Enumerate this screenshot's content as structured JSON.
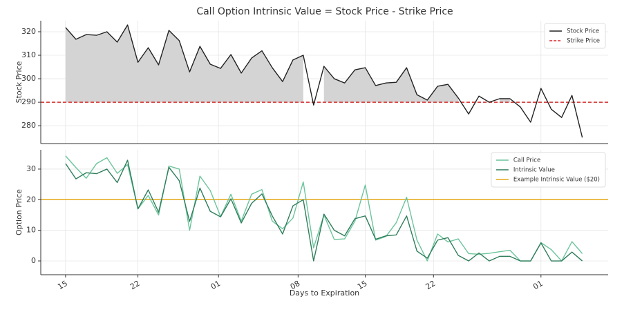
{
  "chart_data": [
    {
      "type": "line",
      "title": "Call Option Intrinsic Value = Stock Price - Strike Price",
      "ylabel": "Stock Price",
      "x": [
        0,
        1,
        2,
        3,
        4,
        5,
        6,
        7,
        8,
        9,
        10,
        11,
        12,
        13,
        14,
        15,
        16,
        17,
        18,
        19,
        20,
        21,
        22,
        23,
        24,
        25,
        26,
        27,
        28,
        29,
        30,
        31,
        32,
        33,
        34,
        35,
        36,
        37,
        38,
        39,
        40,
        41,
        42,
        43,
        44,
        45,
        46,
        47,
        48,
        49,
        50
      ],
      "series": [
        {
          "name": "Stock Price",
          "color": "#222222",
          "values": [
            321.8,
            316.8,
            318.8,
            318.5,
            320,
            315.6,
            322.9,
            307,
            313.2,
            305.9,
            320.6,
            316.2,
            302.9,
            313.8,
            306.2,
            304.4,
            310.3,
            302.4,
            308.8,
            311.9,
            304.7,
            298.8,
            308,
            310,
            288.8,
            305.3,
            300,
            298.2,
            303.8,
            304.7,
            297.1,
            298.2,
            298.5,
            304.7,
            293.2,
            290.9,
            296.8,
            297.6,
            291.8,
            285,
            292.6,
            290,
            291.5,
            291.5,
            288,
            281.5,
            295.9,
            287,
            283.5,
            292.9,
            275
          ]
        }
      ],
      "hlines": [
        {
          "name": "Strike Price",
          "value": 290,
          "color": "#d62728",
          "style": "dashed"
        }
      ],
      "fill": "#d4d4d4",
      "xlim": [
        -2.4,
        52.5
      ],
      "ylim": [
        272.4,
        324.7
      ],
      "yticks": [
        280,
        290,
        300,
        310,
        320
      ],
      "grid": true,
      "legend": "upper right"
    },
    {
      "type": "line",
      "ylabel": "Option Price",
      "xlabel": "Days to Expiration",
      "x": [
        0,
        1,
        2,
        3,
        4,
        5,
        6,
        7,
        8,
        9,
        10,
        11,
        12,
        13,
        14,
        15,
        16,
        17,
        18,
        19,
        20,
        21,
        22,
        23,
        24,
        25,
        26,
        27,
        28,
        29,
        30,
        31,
        32,
        33,
        34,
        35,
        36,
        37,
        38,
        39,
        40,
        41,
        42,
        43,
        44,
        45,
        46,
        47,
        48,
        49,
        50
      ],
      "series": [
        {
          "name": "Call Price",
          "color": "#6cc49c",
          "values": [
            34.3,
            30.5,
            27,
            31.8,
            33.7,
            28.6,
            31.5,
            17,
            21.4,
            15,
            31,
            30,
            10,
            27.7,
            23,
            14.5,
            21.8,
            13,
            21.8,
            23.3,
            13,
            10.5,
            14,
            25.8,
            4.3,
            15,
            7,
            7.2,
            13,
            24.8,
            6.8,
            8,
            12.5,
            20.8,
            6.8,
            0,
            8.8,
            6.2,
            7.2,
            2.4,
            2.2,
            2.5,
            3,
            3.5,
            0,
            0,
            6,
            3.7,
            0,
            6.3,
            2.4
          ]
        },
        {
          "name": "Intrinsic Value",
          "color": "#2e7d5b",
          "values": [
            31.8,
            26.8,
            28.8,
            28.5,
            30,
            25.6,
            32.9,
            17,
            23.2,
            15.9,
            30.6,
            26.2,
            12.9,
            23.8,
            16.2,
            14.4,
            20.3,
            12.4,
            18.8,
            21.9,
            14.7,
            8.8,
            18,
            20,
            0,
            15.3,
            10,
            8.2,
            13.8,
            14.7,
            7.1,
            8.2,
            8.5,
            14.7,
            3.2,
            0.9,
            6.8,
            7.6,
            1.8,
            0,
            2.6,
            0,
            1.5,
            1.5,
            0,
            0,
            5.9,
            0,
            0,
            2.9,
            0
          ]
        }
      ],
      "hlines": [
        {
          "name": "Example Intrinsic Value ($20)",
          "value": 20,
          "color": "#e6a817",
          "style": "solid"
        }
      ],
      "xlim": [
        -2.4,
        52.5
      ],
      "xticks": [
        {
          "value": 0,
          "label": "15"
        },
        {
          "value": 7,
          "label": "22"
        },
        {
          "value": 14.8,
          "label": "01"
        },
        {
          "value": 22.5,
          "label": "08"
        },
        {
          "value": 29,
          "label": "15"
        },
        {
          "value": 35.6,
          "label": "22"
        },
        {
          "value": 46,
          "label": "01"
        }
      ],
      "ylim": [
        -4.5,
        36.3
      ],
      "yticks": [
        0,
        10,
        20,
        30
      ],
      "grid": true,
      "legend": "upper right"
    }
  ]
}
